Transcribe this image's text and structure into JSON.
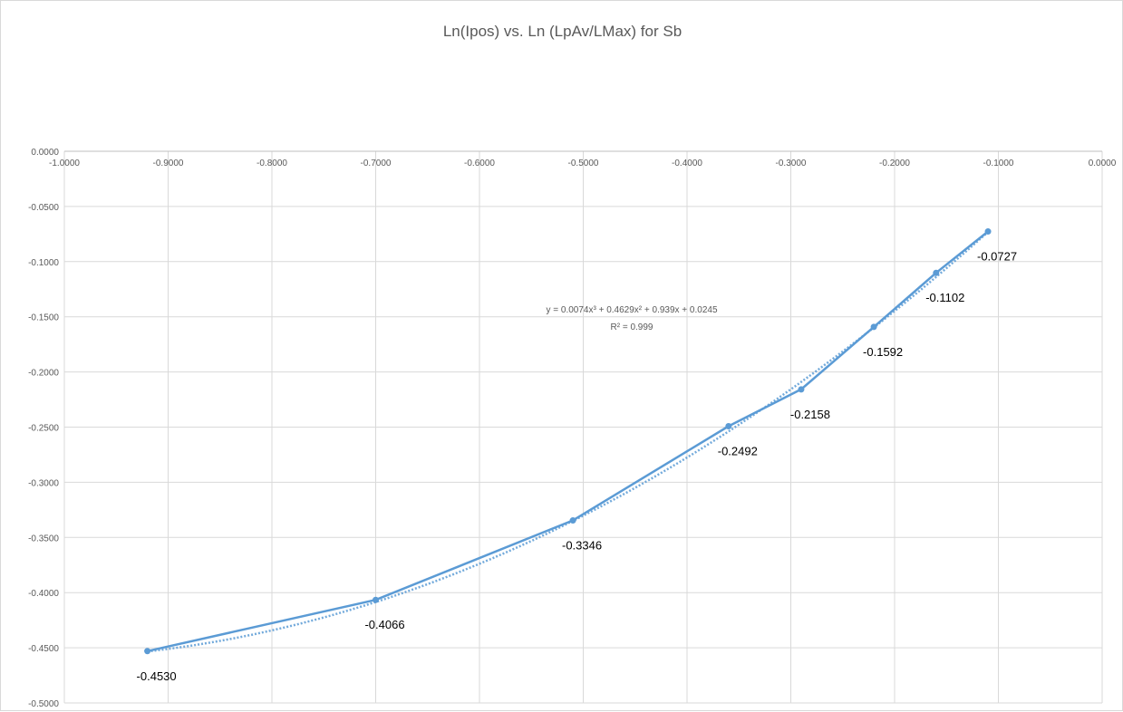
{
  "chart_data": {
    "type": "line",
    "title": "Ln(Ipos) vs. Ln (LpAv/LMax) for Sb",
    "xlabel": "",
    "ylabel": "",
    "xlim": [
      -1.0,
      0.0
    ],
    "ylim": [
      -0.5,
      0.0
    ],
    "x_tick_labels": [
      "-1.0000",
      "-0.9000",
      "-0.8000",
      "-0.7000",
      "-0.6000",
      "-0.5000",
      "-0.4000",
      "-0.3000",
      "-0.2000",
      "-0.1000",
      "0.0000"
    ],
    "y_tick_labels": [
      "0.0000",
      "-0.0500",
      "-0.1000",
      "-0.1500",
      "-0.2000",
      "-0.2500",
      "-0.3000",
      "-0.3500",
      "-0.4000",
      "-0.4500",
      "-0.5000"
    ],
    "x_axis_position": "top",
    "grid": true,
    "legend": "none",
    "series": [
      {
        "x": [
          -0.92,
          -0.7,
          -0.51,
          -0.36,
          -0.29,
          -0.22,
          -0.16,
          -0.11
        ],
        "y": [
          -0.453,
          -0.4066,
          -0.3346,
          -0.2492,
          -0.2158,
          -0.1592,
          -0.1102,
          -0.0727
        ],
        "data_labels": [
          "-0.4530",
          "-0.4066",
          "-0.3346",
          "-0.2492",
          "-0.2158",
          "-0.1592",
          "-0.1102",
          "-0.0727"
        ],
        "color": "#5b9bd5"
      }
    ],
    "trendline": {
      "type": "polynomial",
      "coefficients": [
        0.0074,
        0.4629,
        0.939,
        0.0245
      ],
      "equation": "y = 0.0074x³ + 0.4629x² + 0.939x + 0.0245",
      "r_squared": "R² = 0.999",
      "color": "#5b9bd5"
    }
  }
}
